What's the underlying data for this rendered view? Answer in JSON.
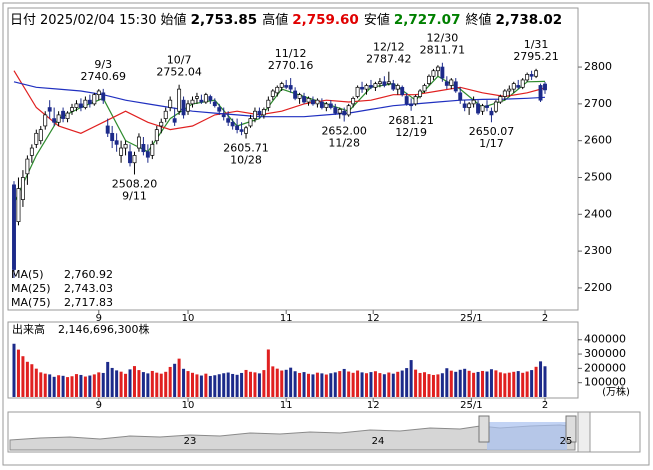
{
  "header": {
    "date_label": "日付",
    "date": "2025/02/04 15:30",
    "fields": [
      {
        "label": "始値",
        "value": "2,753.85",
        "color": "#000000"
      },
      {
        "label": "高値",
        "value": "2,759.60",
        "color": "#e00000"
      },
      {
        "label": "安値",
        "value": "2,727.07",
        "color": "#008000"
      },
      {
        "label": "終値",
        "value": "2,738.02",
        "color": "#000000"
      }
    ]
  },
  "chart_data": {
    "type": "candlestick",
    "up_color": "#ffffff",
    "down_color": "#1c2a8a",
    "open": [
      2480,
      2380,
      2440,
      2510,
      2560,
      2590,
      2600,
      2640,
      2690,
      2660,
      2650,
      2680,
      2660,
      2680,
      2690,
      2700,
      2690,
      2710,
      2700,
      2725,
      2730,
      2640,
      2620,
      2600,
      2560,
      2580,
      2570,
      2540,
      2580,
      2590,
      2570,
      2560,
      2600,
      2640,
      2660,
      2690,
      2660,
      2680,
      2710,
      2680,
      2700,
      2715,
      2710,
      2705,
      2720,
      2705,
      2690,
      2670,
      2660,
      2650,
      2640,
      2630,
      2620,
      2640,
      2660,
      2680,
      2670,
      2690,
      2720,
      2730,
      2745,
      2750,
      2750,
      2735,
      2715,
      2720,
      2705,
      2710,
      2700,
      2705,
      2690,
      2700,
      2690,
      2675,
      2680,
      2670,
      2700,
      2720,
      2745,
      2740,
      2750,
      2745,
      2755,
      2760,
      2755,
      2755,
      2740,
      2745,
      2720,
      2700,
      2700,
      2720,
      2735,
      2755,
      2775,
      2790,
      2800,
      2760,
      2750,
      2760,
      2730,
      2700,
      2690,
      2700,
      2700,
      2680,
      2695,
      2680,
      2680,
      2705,
      2720,
      2735,
      2740,
      2750,
      2745,
      2765,
      2780,
      2775,
      2750,
      2753.85
    ],
    "high": [
      2490,
      2500,
      2520,
      2560,
      2590,
      2630,
      2640,
      2680,
      2710,
      2690,
      2680,
      2690,
      2680,
      2700,
      2710,
      2715,
      2720,
      2725,
      2730,
      2740,
      2740.69,
      2660,
      2640,
      2620,
      2600,
      2600,
      2590,
      2570,
      2620,
      2610,
      2590,
      2600,
      2640,
      2660,
      2690,
      2720,
      2690,
      2752.04,
      2720,
      2710,
      2720,
      2730,
      2725,
      2730,
      2725,
      2715,
      2700,
      2690,
      2680,
      2660,
      2660,
      2650,
      2640,
      2670,
      2690,
      2690,
      2690,
      2720,
      2740,
      2750,
      2760,
      2765,
      2770.16,
      2745,
      2730,
      2730,
      2720,
      2720,
      2715,
      2715,
      2705,
      2710,
      2700,
      2690,
      2690,
      2700,
      2720,
      2750,
      2760,
      2755,
      2765,
      2760,
      2770,
      2775,
      2787.42,
      2765,
      2755,
      2750,
      2730,
      2715,
      2725,
      2740,
      2755,
      2780,
      2795,
      2805,
      2811.71,
      2775,
      2770,
      2770,
      2745,
      2710,
      2705,
      2720,
      2710,
      2700,
      2710,
      2690,
      2710,
      2725,
      2740,
      2750,
      2760,
      2765,
      2770,
      2785,
      2790,
      2795.21,
      2755,
      2759.6
    ],
    "low": [
      2227,
      2370,
      2420,
      2480,
      2540,
      2580,
      2590,
      2630,
      2660,
      2640,
      2640,
      2650,
      2650,
      2670,
      2680,
      2680,
      2685,
      2690,
      2695,
      2710,
      2700,
      2610,
      2580,
      2570,
      2540,
      2560,
      2530,
      2508.2,
      2570,
      2560,
      2540,
      2550,
      2590,
      2620,
      2650,
      2680,
      2640,
      2670,
      2660,
      2670,
      2690,
      2700,
      2700,
      2700,
      2700,
      2690,
      2670,
      2655,
      2640,
      2630,
      2620,
      2615,
      2605.71,
      2635,
      2650,
      2660,
      2660,
      2680,
      2710,
      2720,
      2735,
      2740,
      2730,
      2710,
      2700,
      2700,
      2695,
      2695,
      2690,
      2685,
      2680,
      2685,
      2670,
      2660,
      2652,
      2665,
      2690,
      2715,
      2730,
      2725,
      2740,
      2735,
      2745,
      2745,
      2750,
      2735,
      2725,
      2720,
      2695,
      2681.21,
      2695,
      2715,
      2730,
      2750,
      2765,
      2775,
      2760,
      2740,
      2740,
      2730,
      2700,
      2680,
      2670,
      2690,
      2670,
      2670,
      2680,
      2650.07,
      2675,
      2700,
      2710,
      2720,
      2730,
      2740,
      2740,
      2760,
      2765,
      2770,
      2705,
      2727.07
    ],
    "close": [
      2250,
      2470,
      2500,
      2550,
      2580,
      2620,
      2630,
      2670,
      2680,
      2650,
      2670,
      2660,
      2675,
      2690,
      2700,
      2690,
      2710,
      2700,
      2725,
      2735,
      2710,
      2620,
      2600,
      2590,
      2580,
      2590,
      2540,
      2560,
      2610,
      2570,
      2555,
      2590,
      2630,
      2650,
      2680,
      2710,
      2650,
      2740,
      2670,
      2700,
      2710,
      2720,
      2705,
      2725,
      2710,
      2695,
      2680,
      2665,
      2650,
      2640,
      2630,
      2625,
      2635,
      2660,
      2680,
      2670,
      2685,
      2710,
      2735,
      2745,
      2755,
      2745,
      2740,
      2715,
      2725,
      2705,
      2715,
      2700,
      2710,
      2690,
      2700,
      2690,
      2675,
      2685,
      2670,
      2695,
      2715,
      2745,
      2740,
      2750,
      2745,
      2755,
      2760,
      2750,
      2760,
      2740,
      2750,
      2725,
      2700,
      2695,
      2720,
      2735,
      2750,
      2775,
      2790,
      2800,
      2770,
      2750,
      2765,
      2735,
      2710,
      2690,
      2700,
      2710,
      2675,
      2695,
      2690,
      2670,
      2705,
      2720,
      2735,
      2740,
      2755,
      2745,
      2765,
      2780,
      2775,
      2790,
      2710,
      2738.02
    ],
    "xticks": [
      {
        "value": 19,
        "label": "9"
      },
      {
        "value": 39,
        "label": "10"
      },
      {
        "value": 61,
        "label": "11"
      },
      {
        "value": 80.5,
        "label": "12"
      },
      {
        "value": 102.5,
        "label": "25/1"
      },
      {
        "value": 119,
        "label": "2"
      }
    ],
    "ylim": [
      2140,
      2955
    ],
    "yticks": [
      2200,
      2300,
      2400,
      2500,
      2600,
      2700,
      2800
    ],
    "grid": false,
    "annotations": [
      {
        "index": 20,
        "side": "high",
        "date": "9/3",
        "label": "2740.69"
      },
      {
        "index": 27,
        "side": "low",
        "date": "9/11",
        "label": "2508.20"
      },
      {
        "index": 37,
        "side": "high",
        "date": "10/7",
        "label": "2752.04"
      },
      {
        "index": 52,
        "side": "low",
        "date": "10/28",
        "label": "2605.71"
      },
      {
        "index": 62,
        "side": "high",
        "date": "11/12",
        "label": "2770.16"
      },
      {
        "index": 74,
        "side": "low",
        "date": "11/28",
        "label": "2652.00"
      },
      {
        "index": 84,
        "side": "high",
        "date": "12/12",
        "label": "2787.42"
      },
      {
        "index": 89,
        "side": "low",
        "date": "12/19",
        "label": "2681.21"
      },
      {
        "index": 96,
        "side": "high",
        "date": "12/30",
        "label": "2811.71"
      },
      {
        "index": 107,
        "side": "low",
        "date": "1/17",
        "label": "2650.07"
      },
      {
        "index": 117,
        "side": "high",
        "date": "1/31",
        "label": "2795.21"
      }
    ],
    "ma_x": [
      0,
      5,
      10,
      15,
      20,
      25,
      30,
      35,
      40,
      45,
      50,
      55,
      60,
      65,
      70,
      75,
      80,
      85,
      90,
      95,
      100,
      105,
      110,
      115,
      119
    ],
    "series": [
      {
        "name": "MA(5)",
        "color": "#2e8b2e",
        "value_label": "2,760.92",
        "values": [
          2430,
          2560,
          2660,
          2690,
          2715,
          2600,
          2570,
          2660,
          2700,
          2710,
          2640,
          2660,
          2740,
          2720,
          2700,
          2680,
          2745,
          2755,
          2710,
          2775,
          2740,
          2690,
          2710,
          2760,
          2760.92
        ]
      },
      {
        "name": "MA(25)",
        "color": "#e02020",
        "value_label": "2,743.03",
        "values": [
          2790,
          2690,
          2640,
          2620,
          2650,
          2680,
          2650,
          2630,
          2640,
          2670,
          2680,
          2670,
          2680,
          2700,
          2710,
          2705,
          2710,
          2725,
          2725,
          2735,
          2745,
          2730,
          2720,
          2730,
          2743.03
        ]
      },
      {
        "name": "MA(75)",
        "color": "#2030c0",
        "value_label": "2,717.83",
        "values": [
          2760,
          2745,
          2740,
          2735,
          2725,
          2710,
          2700,
          2690,
          2680,
          2675,
          2670,
          2665,
          2665,
          2665,
          2670,
          2675,
          2685,
          2695,
          2700,
          2705,
          2710,
          2712,
          2713,
          2715,
          2717.83
        ]
      }
    ],
    "volume_title": "出来高",
    "volume_total": "2,146,696,300株",
    "volume_unit": "(万株)",
    "volume_up_color": "#e02020",
    "volume_down_color": "#1c2a8a",
    "volume_ylim": [
      0,
      510000
    ],
    "volume_yticks": [
      100000,
      200000,
      300000,
      400000
    ],
    "volume": [
      372000,
      331000,
      285000,
      246000,
      229000,
      198000,
      172000,
      163000,
      158000,
      141000,
      152000,
      148000,
      139000,
      145000,
      160000,
      154000,
      143000,
      150000,
      158000,
      172000,
      168000,
      245000,
      203000,
      186000,
      177000,
      162000,
      193000,
      216000,
      188000,
      174000,
      165000,
      182000,
      170000,
      163000,
      176000,
      210000,
      232000,
      268000,
      197000,
      181000,
      169000,
      158000,
      150000,
      163000,
      147000,
      152000,
      159000,
      166000,
      171000,
      161000,
      155000,
      168000,
      189000,
      176000,
      172000,
      165000,
      188000,
      332000,
      214000,
      198000,
      185000,
      190000,
      205000,
      180000,
      168000,
      174000,
      162000,
      158000,
      170000,
      165000,
      157000,
      166000,
      172000,
      181000,
      196000,
      178000,
      169000,
      185000,
      172000,
      166000,
      174000,
      180000,
      167000,
      159000,
      171000,
      163000,
      176000,
      185000,
      202000,
      258000,
      191000,
      168000,
      173000,
      160000,
      154000,
      158000,
      166000,
      201000,
      184000,
      176000,
      190000,
      197000,
      183000,
      169000,
      175000,
      182000,
      178000,
      194000,
      186000,
      172000,
      165000,
      170000,
      176000,
      181000,
      169000,
      178000,
      188000,
      211000,
      249000,
      214670
    ],
    "navigator_labels": [
      "23",
      "24",
      "25"
    ]
  }
}
